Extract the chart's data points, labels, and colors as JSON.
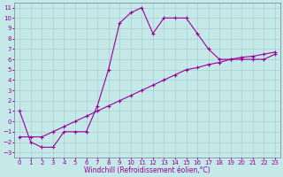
{
  "xlabel": "Windchill (Refroidissement éolien,°C)",
  "bg_color": "#c5e8e8",
  "grid_color": "#aacfcf",
  "line_color": "#990099",
  "spine_color": "#7a7a9a",
  "xlim": [
    -0.5,
    23.5
  ],
  "ylim": [
    -3.5,
    11.5
  ],
  "xticks": [
    0,
    1,
    2,
    3,
    4,
    5,
    6,
    7,
    8,
    9,
    10,
    11,
    12,
    13,
    14,
    15,
    16,
    17,
    18,
    19,
    20,
    21,
    22,
    23
  ],
  "yticks": [
    -3,
    -2,
    -1,
    0,
    1,
    2,
    3,
    4,
    5,
    6,
    7,
    8,
    9,
    10,
    11
  ],
  "curve1_x": [
    0,
    1,
    2,
    3,
    4,
    5,
    6,
    7,
    8,
    9,
    10,
    11,
    12,
    13,
    14,
    15,
    16,
    17,
    18,
    19,
    20,
    21,
    22,
    23
  ],
  "curve1_y": [
    1,
    -2,
    -2.5,
    -2.5,
    -1,
    -1,
    -1,
    1.5,
    5,
    9.5,
    10.5,
    11,
    8.5,
    10,
    10,
    10,
    8.5,
    7,
    6,
    6,
    6,
    6,
    6,
    6.5
  ],
  "curve2_x": [
    0,
    1,
    2,
    3,
    4,
    5,
    6,
    7,
    8,
    9,
    10,
    11,
    12,
    13,
    14,
    15,
    16,
    17,
    18,
    19,
    20,
    21,
    22,
    23
  ],
  "curve2_y": [
    -1.5,
    -1.5,
    -1.5,
    -1,
    -0.5,
    0,
    0.5,
    1,
    1.5,
    2,
    2.5,
    3,
    3.5,
    4,
    4.5,
    5,
    5.2,
    5.5,
    5.7,
    6,
    6.2,
    6.3,
    6.5,
    6.7
  ],
  "marker": "+",
  "linewidth": 0.8,
  "markersize": 2.5,
  "xlabel_fontsize": 5.5,
  "tick_fontsize": 5
}
